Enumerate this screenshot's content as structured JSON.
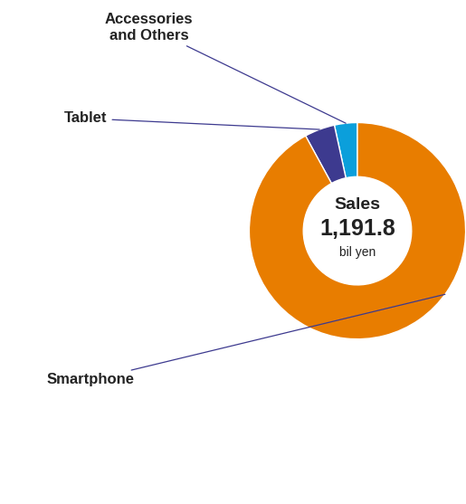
{
  "chart_data": {
    "type": "pie",
    "categories": [
      "Accessories\nand Others",
      "Tablet",
      "Smartphone"
    ],
    "values": [
      40.8,
      54.0,
      1097.0
    ],
    "colors": [
      "#0b9fdb",
      "#3d3a8f",
      "#e87d00"
    ],
    "total_title": "Sales",
    "total": {
      "value": 1191.8,
      "label": "1,191.8"
    },
    "unit": "bil yen"
  }
}
